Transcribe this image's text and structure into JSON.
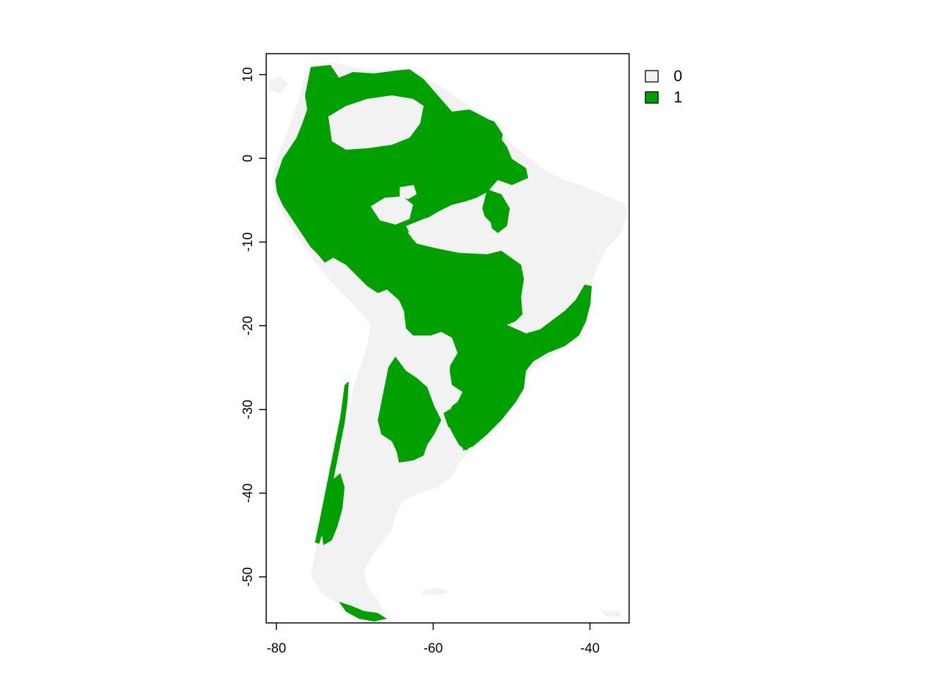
{
  "map": {
    "type": "raster",
    "extent": {
      "lon": [
        -81.3,
        -35.0
      ],
      "lat": [
        -55.5,
        12.5
      ]
    },
    "x_axis": {
      "ticks": [
        -80,
        -60,
        -40
      ],
      "labels": [
        "-80",
        "-60",
        "-40"
      ]
    },
    "y_axis": {
      "ticks": [
        10,
        0,
        -10,
        -20,
        -30,
        -40,
        -50
      ],
      "labels": [
        "10",
        "0",
        "-10",
        "-20",
        "-30",
        "-40",
        "-50"
      ]
    },
    "legend": {
      "placement": "top-right-outside",
      "entries": [
        {
          "value": "0",
          "color": "#f2f2f2"
        },
        {
          "value": "1",
          "color": "#00a000"
        }
      ]
    },
    "colors": {
      "land_0": "#f2f2f2",
      "class_1": "#00a000",
      "frame": "#000000"
    }
  }
}
